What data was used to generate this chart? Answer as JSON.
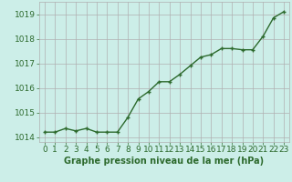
{
  "x": [
    0,
    1,
    2,
    3,
    4,
    5,
    6,
    7,
    8,
    9,
    10,
    11,
    12,
    13,
    14,
    15,
    16,
    17,
    18,
    19,
    20,
    21,
    22,
    23
  ],
  "y": [
    1014.2,
    1014.2,
    1014.35,
    1014.25,
    1014.35,
    1014.2,
    1014.2,
    1014.2,
    1014.8,
    1015.55,
    1015.85,
    1016.25,
    1016.25,
    1016.55,
    1016.9,
    1017.25,
    1017.35,
    1017.6,
    1017.6,
    1017.55,
    1017.55,
    1018.1,
    1018.85,
    1019.1
  ],
  "line_color": "#2d6a2d",
  "marker": "+",
  "background_color": "#cceee8",
  "grid_color": "#b0b0b0",
  "xlabel": "Graphe pression niveau de la mer (hPa)",
  "xlabel_color": "#2d6a2d",
  "tick_color": "#2d6a2d",
  "ylim": [
    1013.8,
    1019.5
  ],
  "yticks": [
    1014,
    1015,
    1016,
    1017,
    1018,
    1019
  ],
  "xlim": [
    -0.5,
    23.5
  ],
  "font_size": 6.5,
  "xlabel_fontsize": 7.0,
  "linewidth": 1.0,
  "markersize": 3.5,
  "markeredgewidth": 1.0
}
